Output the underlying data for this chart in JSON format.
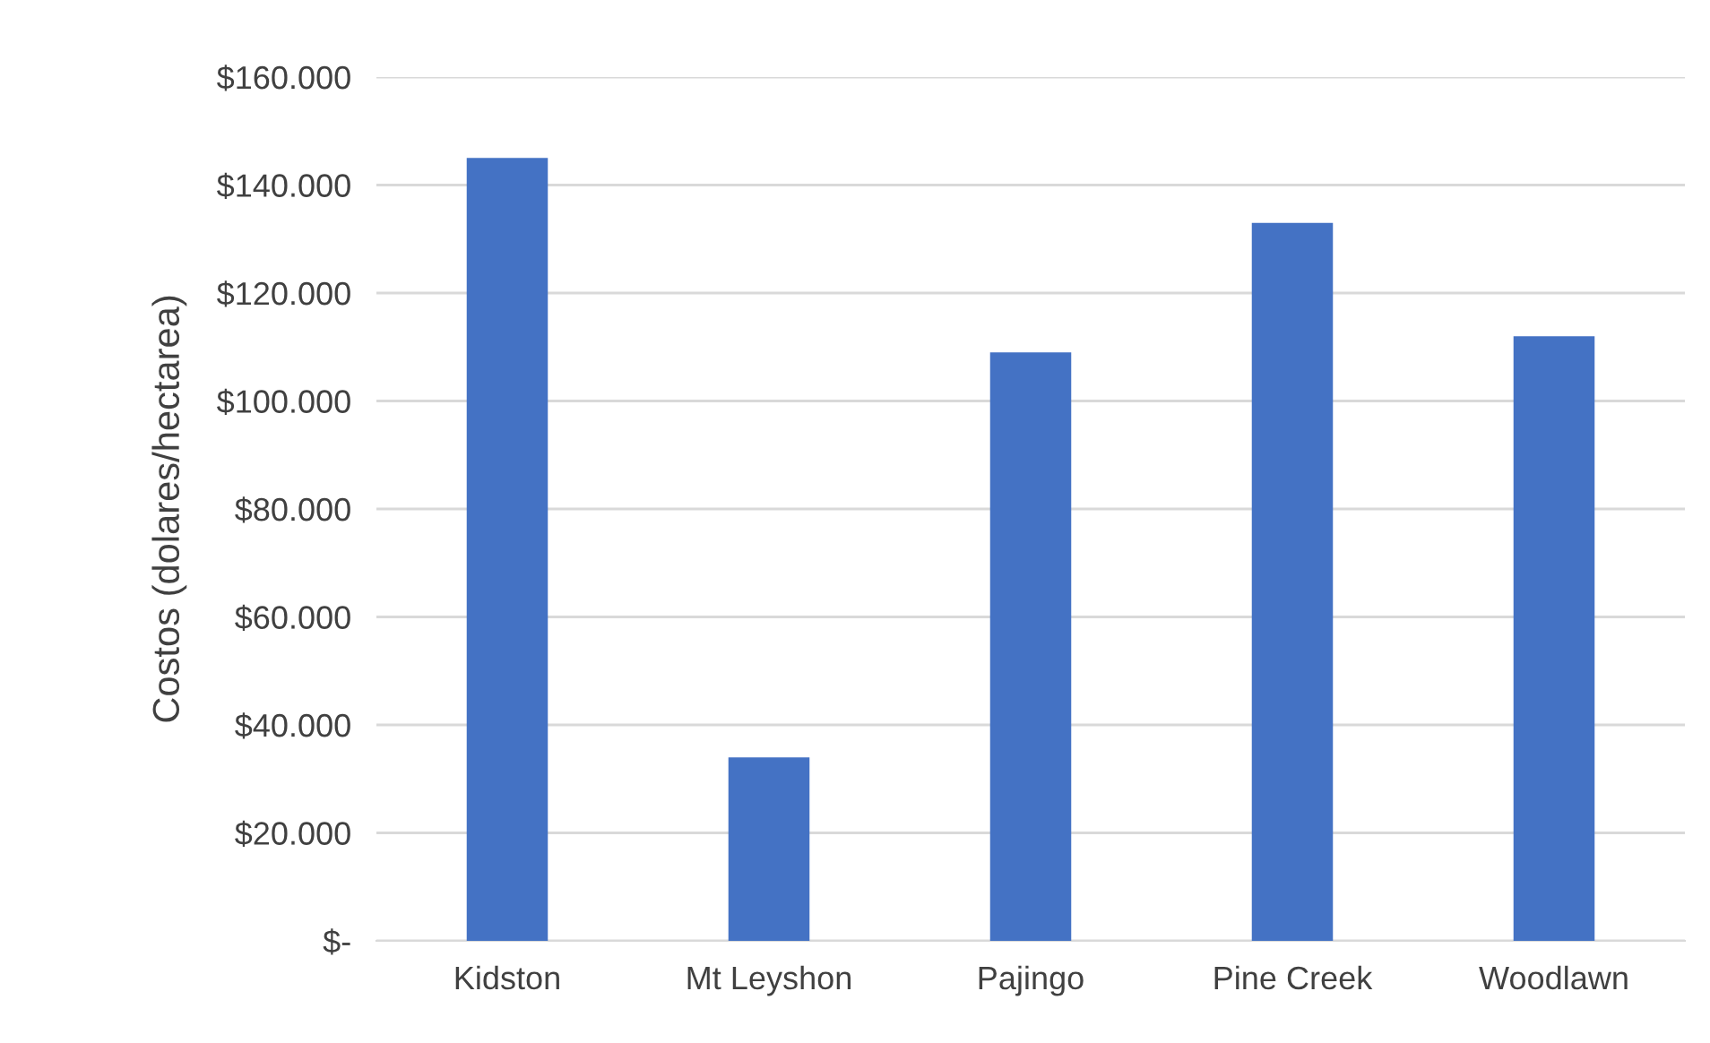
{
  "chart_data": {
    "type": "bar",
    "ylabel": "Costos (dolares/hectarea)",
    "categories": [
      "Kidston",
      "Mt Leyshon",
      "Pajingo",
      "Pine Creek",
      "Woodlawn"
    ],
    "values": [
      145000,
      34000,
      109000,
      133000,
      112000
    ],
    "color": "#4472c4",
    "ylim": [
      0,
      160000
    ],
    "yticks": [
      {
        "value": 0,
        "label": "$-"
      },
      {
        "value": 20000,
        "label": "$20.000"
      },
      {
        "value": 40000,
        "label": "$40.000"
      },
      {
        "value": 60000,
        "label": "$60.000"
      },
      {
        "value": 80000,
        "label": "$80.000"
      },
      {
        "value": 100000,
        "label": "$100.000"
      },
      {
        "value": 120000,
        "label": "$120.000"
      },
      {
        "value": 140000,
        "label": "$140.000"
      },
      {
        "value": 160000,
        "label": "$160.000"
      }
    ],
    "grid": "y"
  }
}
